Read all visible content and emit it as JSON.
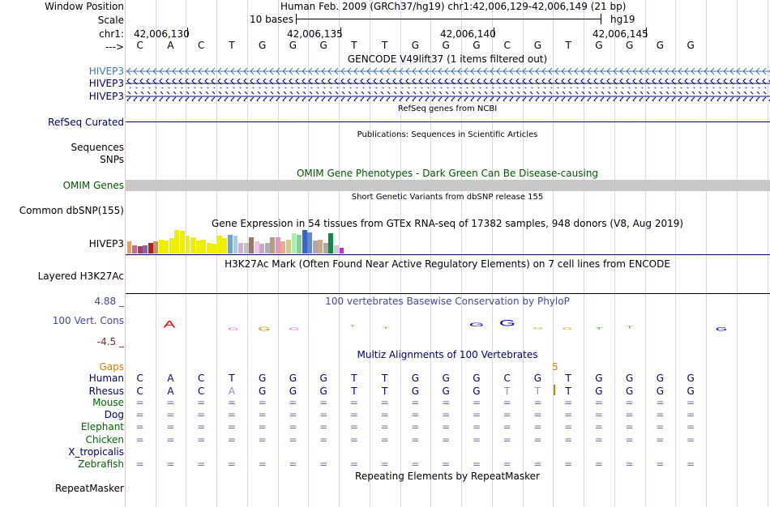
{
  "colors": {
    "navy": "#000066",
    "hivep_blue": "#3a79b3",
    "omim_green": "#005500",
    "gaps_orange": "#d27d00",
    "green_label": "#006600",
    "phylop_red": "#8b2020",
    "phylop_blue": "#4646a0",
    "omim_bar": "#c8c8c8"
  },
  "header": {
    "window_position_label": "Window Position",
    "window_position_value": "Human Feb. 2009 (GRCh37/hg19)   chr1:42,006,129-42,006,149 (21 bp)",
    "scale_label": "Scale",
    "scale_value": "10 bases",
    "scale_assembly": "hg19",
    "chr_label": "chr1:",
    "coordinates": [
      "42,006,130",
      "42,006,135",
      "42,006,140",
      "42,006,145"
    ],
    "strand_label": "--->",
    "bases": [
      "C",
      "A",
      "C",
      "T",
      "G",
      "G",
      "G",
      "T",
      "T",
      "G",
      "G",
      "G",
      "C",
      "G",
      "T",
      "G",
      "G",
      "G",
      "G"
    ]
  },
  "tracks": [
    {
      "id": "gencode",
      "title": "GENCODE V49lift37 (1 items filtered out)",
      "labels": [
        "HIVEP3",
        "HIVEP3",
        "HIVEP3"
      ]
    },
    {
      "id": "refseq",
      "title": "RefSeq genes from NCBI",
      "label": "RefSeq Curated"
    },
    {
      "id": "publications",
      "title": "Publications: Sequences in Scientific Articles",
      "labels": [
        "Sequences",
        "SNPs"
      ]
    },
    {
      "id": "omim",
      "title": "OMIM Gene Phenotypes - Dark Green Can Be Disease-causing",
      "label": "OMIM Genes"
    },
    {
      "id": "dbsnp",
      "title": "Short Genetic Variants from dbSNP release 155",
      "label": "Common dbSNP(155)"
    },
    {
      "id": "gtex",
      "title": "Gene Expression in 54 tissues from GTEx RNA-seq of 17382 samples, 948 donors (V8, Aug 2019)",
      "label": "HIVEP3"
    },
    {
      "id": "h3k27ac",
      "title": "H3K27Ac Mark (Often Found Near Active Regulatory Elements) on 7 cell lines from ENCODE",
      "label": "Layered H3K27Ac"
    },
    {
      "id": "phylop",
      "title": "100 vertebrates Basewise Conservation by PhyloP",
      "label": "100 Vert. Cons",
      "ymax": "4.88 _",
      "ymin": "-4.5 _"
    },
    {
      "id": "multiz",
      "title": "Multiz Alignments of 100 Vertebrates",
      "gaps_label": "Gaps",
      "gap_count": "5"
    },
    {
      "id": "repeatmasker",
      "title": "Repeating Elements by RepeatMasker",
      "label": "RepeatMasker"
    }
  ],
  "phylop_letters": [
    "A",
    "G",
    "G",
    "G",
    "T",
    "T",
    "G",
    "G",
    "G",
    "G",
    "T",
    "T",
    "G"
  ],
  "species": [
    {
      "name": "Human",
      "seq": [
        "C",
        "A",
        "C",
        "T",
        "G",
        "G",
        "G",
        "T",
        "T",
        "G",
        "G",
        "G",
        "C",
        "G",
        "T",
        "G",
        "G",
        "G",
        "G"
      ]
    },
    {
      "name": "Rhesus",
      "seq": [
        "C",
        "A",
        "C",
        "A",
        "G",
        "G",
        "G",
        "T",
        "T",
        "G",
        "G",
        "G",
        "T",
        "T",
        "T",
        "G",
        "G",
        "G",
        "G"
      ]
    },
    {
      "name": "Mouse",
      "seq": [
        "=",
        "=",
        "=",
        "=",
        "=",
        "=",
        "=",
        "=",
        "=",
        "=",
        "=",
        "=",
        "=",
        "=",
        "=",
        "=",
        "=",
        "=",
        "="
      ]
    },
    {
      "name": "Dog",
      "seq": [
        "=",
        "=",
        "=",
        "=",
        "=",
        "=",
        "=",
        "=",
        "=",
        "=",
        "=",
        "=",
        "=",
        "=",
        "=",
        "=",
        "=",
        "=",
        "="
      ]
    },
    {
      "name": "Elephant",
      "seq": [
        "=",
        "=",
        "=",
        "=",
        "=",
        "=",
        "=",
        "=",
        "=",
        "=",
        "=",
        "=",
        "=",
        "=",
        "=",
        "=",
        "=",
        "=",
        "="
      ]
    },
    {
      "name": "Chicken",
      "seq": [
        "=",
        "=",
        "=",
        "=",
        "=",
        "=",
        "=",
        "=",
        "=",
        "=",
        "=",
        "=",
        "=",
        "=",
        "=",
        "=",
        "=",
        "=",
        "="
      ]
    },
    {
      "name": "X_tropicalis",
      "seq": []
    },
    {
      "name": "Zebrafish",
      "seq": [
        "=",
        "=",
        "=",
        "=",
        "=",
        "=",
        "=",
        "=",
        "=",
        "=",
        "=",
        "=",
        "=",
        "=",
        "=",
        "=",
        "=",
        "=",
        "="
      ]
    }
  ],
  "gtex_bars": [
    {
      "value": 0.5,
      "color": "#f0a050"
    },
    {
      "value": 0.35,
      "color": "#cc6688"
    },
    {
      "value": 0.32,
      "color": "#a04060"
    },
    {
      "value": 0.35,
      "color": "#9060a0"
    },
    {
      "value": 0.45,
      "color": "#aa2222"
    },
    {
      "value": 0.52,
      "color": "#bb9966"
    },
    {
      "value": 0.6,
      "color": "#eeee00"
    },
    {
      "value": 0.55,
      "color": "#eeee00"
    },
    {
      "value": 0.65,
      "color": "#eeee00"
    },
    {
      "value": 1.0,
      "color": "#eeee00"
    },
    {
      "value": 0.95,
      "color": "#eeee00"
    },
    {
      "value": 0.75,
      "color": "#eeee00"
    },
    {
      "value": 0.7,
      "color": "#eeee00"
    },
    {
      "value": 0.55,
      "color": "#eeee00"
    },
    {
      "value": 0.6,
      "color": "#eeee00"
    },
    {
      "value": 0.45,
      "color": "#eeee00"
    },
    {
      "value": 0.4,
      "color": "#eeee00"
    },
    {
      "value": 0.75,
      "color": "#eeee00"
    },
    {
      "value": 0.65,
      "color": "#eeee00"
    },
    {
      "value": 0.8,
      "color": "#7aa0d0"
    },
    {
      "value": 0.75,
      "color": "#aacce0"
    },
    {
      "value": 0.45,
      "color": "#d0b0d0"
    },
    {
      "value": 0.45,
      "color": "#c0c0c0"
    },
    {
      "value": 0.7,
      "color": "#997766"
    },
    {
      "value": 0.5,
      "color": "#e8c8e0"
    },
    {
      "value": 0.4,
      "color": "#c8a8c8"
    },
    {
      "value": 0.45,
      "color": "#b0b0b0"
    },
    {
      "value": 0.7,
      "color": "#bb9988"
    },
    {
      "value": 0.7,
      "color": "#dd99bb"
    },
    {
      "value": 0.5,
      "color": "#eeaa88"
    },
    {
      "value": 0.6,
      "color": "#cccc88"
    },
    {
      "value": 0.85,
      "color": "#aaeeaa"
    },
    {
      "value": 0.8,
      "color": "#88cc99"
    },
    {
      "value": 1.0,
      "color": "#3366cc"
    },
    {
      "value": 0.9,
      "color": "#6688bb"
    },
    {
      "value": 0.55,
      "color": "#aaaaaa"
    },
    {
      "value": 0.6,
      "color": "#ccaa88"
    },
    {
      "value": 0.45,
      "color": "#aaaaaa"
    },
    {
      "value": 0.85,
      "color": "#118844"
    },
    {
      "value": 0.35,
      "color": "#cccccc"
    },
    {
      "value": 0.25,
      "color": "#dd22dd"
    }
  ]
}
